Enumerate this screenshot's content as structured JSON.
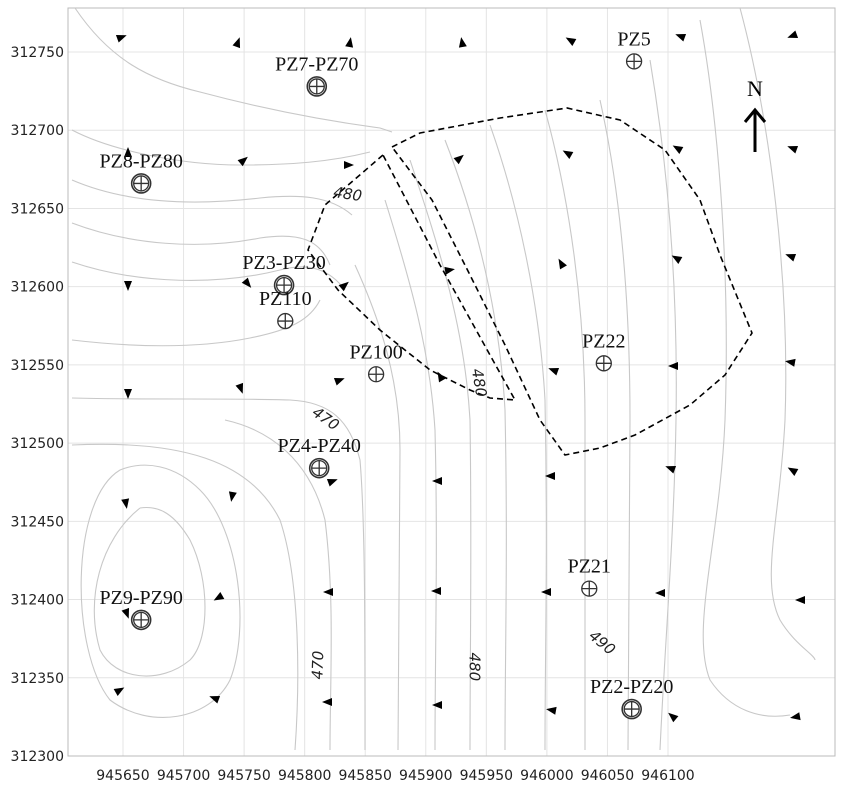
{
  "axes": {
    "x_ticks": [
      "945650",
      "945700",
      "945750",
      "945800",
      "945850",
      "945900",
      "945950",
      "946000",
      "946050",
      "946100"
    ],
    "y_ticks": [
      "312750",
      "312700",
      "312650",
      "312600",
      "312550",
      "312500",
      "312450",
      "312400",
      "312350",
      "312300"
    ],
    "x_range": [
      945620,
      946100
    ],
    "y_range": [
      312300,
      312765
    ],
    "grid": true
  },
  "wells": [
    {
      "label": "PZ7-PZ70",
      "x": 945810,
      "y": 312728,
      "type": "nested"
    },
    {
      "label": "PZ8-PZ80",
      "x": 945665,
      "y": 312666,
      "type": "nested"
    },
    {
      "label": "PZ5",
      "x": 946072,
      "y": 312744,
      "type": "single"
    },
    {
      "label": "PZ3-PZ30",
      "x": 945783,
      "y": 312601,
      "type": "nested"
    },
    {
      "label": "PZ110",
      "x": 945784,
      "y": 312578,
      "type": "single"
    },
    {
      "label": "PZ100",
      "x": 945859,
      "y": 312544,
      "type": "single"
    },
    {
      "label": "PZ22",
      "x": 946047,
      "y": 312551,
      "type": "single"
    },
    {
      "label": "PZ4-PZ40",
      "x": 945812,
      "y": 312484,
      "type": "nested"
    },
    {
      "label": "PZ21",
      "x": 946035,
      "y": 312407,
      "type": "single"
    },
    {
      "label": "PZ9-PZ90",
      "x": 945665,
      "y": 312387,
      "type": "nested"
    },
    {
      "label": "PZ2-PZ20",
      "x": 946070,
      "y": 312330,
      "type": "nested"
    }
  ],
  "contour_labels": [
    {
      "text": "480",
      "x": 945835,
      "y": 312656,
      "rotate": 8
    },
    {
      "text": "470",
      "x": 945815,
      "y": 312513,
      "rotate": 35
    },
    {
      "text": "480",
      "x": 945940,
      "y": 312538,
      "rotate": 80
    },
    {
      "text": "470",
      "x": 945815,
      "y": 312358,
      "rotate": -88
    },
    {
      "text": "480",
      "x": 945936,
      "y": 312357,
      "rotate": 90
    },
    {
      "text": "490",
      "x": 946043,
      "y": 312370,
      "rotate": 40
    }
  ],
  "north_label": "N",
  "colors": {
    "contour": "#c8c8c8",
    "grid": "#e4e4e4",
    "boundary": "#000000"
  }
}
